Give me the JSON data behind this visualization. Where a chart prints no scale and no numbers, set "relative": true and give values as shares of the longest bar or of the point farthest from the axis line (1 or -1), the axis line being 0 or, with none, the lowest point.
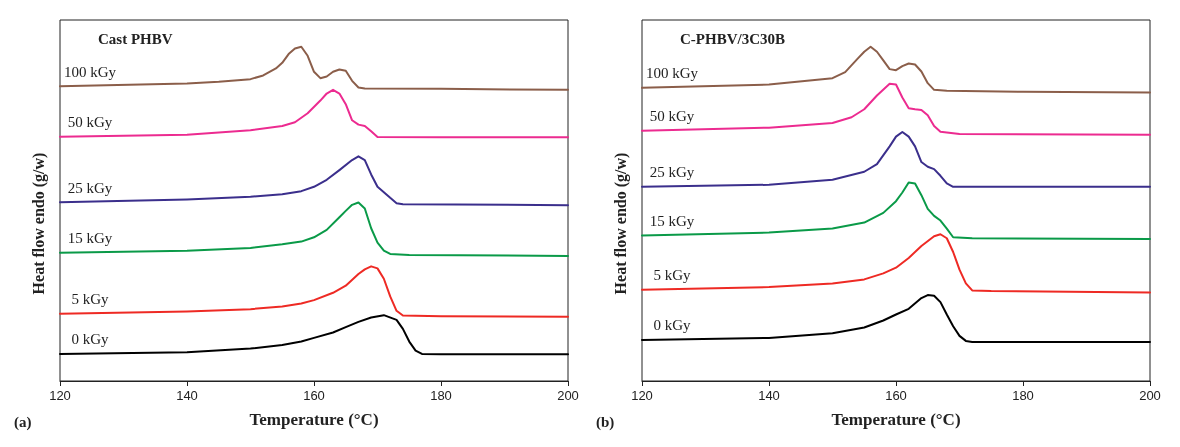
{
  "chart_data": [
    {
      "type": "line",
      "title": "Cast PHBV",
      "xlabel": "Temperature (°C)",
      "ylabel": "Heat flow endo (g/w)",
      "relative": true,
      "xlim": [
        120,
        200
      ],
      "xticks": [
        120,
        140,
        160,
        180,
        200
      ],
      "grid": false,
      "legend": false,
      "marker": "none",
      "line_style": "solid",
      "annotations": [
        "(a)"
      ],
      "series": [
        {
          "name": "0 kGy",
          "color": "#000000",
          "x": [
            120,
            140,
            150,
            155,
            158,
            160,
            163,
            165,
            167,
            169,
            171,
            173,
            174,
            175,
            176,
            177,
            180,
            200
          ],
          "values": [
            0.081,
            0.086,
            0.097,
            0.108,
            0.118,
            0.129,
            0.145,
            0.161,
            0.177,
            0.19,
            0.197,
            0.183,
            0.156,
            0.118,
            0.091,
            0.081,
            0.08,
            0.08
          ]
        },
        {
          "name": "5 kGy",
          "color": "#ee2a24",
          "x": [
            120,
            140,
            150,
            155,
            158,
            160,
            163,
            165,
            167,
            168,
            169,
            170,
            171,
            172,
            173,
            174,
            180,
            200
          ],
          "values": [
            0.201,
            0.208,
            0.215,
            0.223,
            0.232,
            0.242,
            0.264,
            0.285,
            0.32,
            0.334,
            0.343,
            0.337,
            0.306,
            0.253,
            0.21,
            0.196,
            0.194,
            0.192
          ]
        },
        {
          "name": "15 kGy",
          "color": "#0a9a48",
          "x": [
            120,
            140,
            150,
            155,
            158,
            160,
            162,
            164,
            165,
            166,
            167,
            168,
            169,
            170,
            171,
            172,
            175,
            200
          ],
          "values": [
            0.384,
            0.39,
            0.398,
            0.409,
            0.417,
            0.43,
            0.452,
            0.49,
            0.509,
            0.527,
            0.534,
            0.516,
            0.457,
            0.414,
            0.39,
            0.38,
            0.377,
            0.374
          ]
        },
        {
          "name": "25 kGy",
          "color": "#3b2f8c",
          "x": [
            120,
            140,
            150,
            155,
            158,
            160,
            162,
            164,
            166,
            167,
            168,
            169,
            170,
            171,
            172,
            173,
            174,
            200
          ],
          "values": [
            0.535,
            0.543,
            0.551,
            0.559,
            0.568,
            0.581,
            0.602,
            0.631,
            0.661,
            0.672,
            0.661,
            0.618,
            0.581,
            0.565,
            0.548,
            0.532,
            0.529,
            0.526
          ]
        },
        {
          "name": "50 kGy",
          "color": "#ec2b90",
          "x": [
            120,
            140,
            150,
            155,
            157,
            159,
            161,
            162,
            163,
            164,
            165,
            166,
            167,
            168,
            169,
            170,
            180,
            200
          ],
          "values": [
            0.731,
            0.737,
            0.75,
            0.763,
            0.774,
            0.801,
            0.839,
            0.86,
            0.871,
            0.86,
            0.828,
            0.78,
            0.767,
            0.763,
            0.747,
            0.73,
            0.729,
            0.729
          ]
        },
        {
          "name": "100 kGy",
          "color": "#8b5e4a",
          "x": [
            120,
            140,
            145,
            150,
            152,
            154,
            155,
            156,
            157,
            158,
            159,
            160,
            161,
            162,
            163,
            164,
            165,
            166,
            167,
            168,
            180,
            200
          ],
          "values": [
            0.882,
            0.89,
            0.895,
            0.903,
            0.914,
            0.935,
            0.952,
            0.978,
            0.995,
            1,
            0.973,
            0.925,
            0.906,
            0.911,
            0.925,
            0.932,
            0.928,
            0.898,
            0.878,
            0.875,
            0.874,
            0.871
          ]
        }
      ]
    },
    {
      "type": "line",
      "title": "C-PHBV/3C30B",
      "xlabel": "Temperature (°C)",
      "ylabel": "Heat flow endo (g/w)",
      "relative": true,
      "xlim": [
        120,
        200
      ],
      "xticks": [
        120,
        140,
        160,
        180,
        200
      ],
      "grid": false,
      "legend": false,
      "marker": "none",
      "line_style": "solid",
      "annotations": [
        "(b)"
      ],
      "series": [
        {
          "name": "0 kGy",
          "color": "#000000",
          "x": [
            120,
            140,
            150,
            155,
            158,
            160,
            162,
            164,
            165,
            166,
            167,
            168,
            169,
            170,
            171,
            172,
            200
          ],
          "values": [
            0.123,
            0.129,
            0.143,
            0.16,
            0.181,
            0.199,
            0.216,
            0.248,
            0.257,
            0.255,
            0.236,
            0.199,
            0.164,
            0.135,
            0.12,
            0.117,
            0.117
          ]
        },
        {
          "name": "5 kGy",
          "color": "#ee2a24",
          "x": [
            120,
            140,
            150,
            155,
            158,
            160,
            162,
            164,
            166,
            167,
            168,
            169,
            170,
            171,
            172,
            175,
            200
          ],
          "values": [
            0.273,
            0.281,
            0.292,
            0.304,
            0.322,
            0.339,
            0.368,
            0.404,
            0.433,
            0.439,
            0.427,
            0.386,
            0.333,
            0.292,
            0.271,
            0.269,
            0.265
          ]
        },
        {
          "name": "15 kGy",
          "color": "#0a9a48",
          "x": [
            120,
            140,
            150,
            155,
            158,
            160,
            161,
            162,
            163,
            164,
            165,
            166,
            167,
            168,
            169,
            172,
            200
          ],
          "values": [
            0.435,
            0.444,
            0.456,
            0.474,
            0.503,
            0.538,
            0.564,
            0.594,
            0.591,
            0.556,
            0.515,
            0.494,
            0.48,
            0.456,
            0.43,
            0.427,
            0.425
          ]
        },
        {
          "name": "25 kGy",
          "color": "#3b2f8c",
          "x": [
            120,
            140,
            150,
            155,
            157,
            159,
            160,
            161,
            162,
            163,
            164,
            165,
            166,
            167,
            168,
            169,
            200
          ],
          "values": [
            0.581,
            0.587,
            0.602,
            0.626,
            0.649,
            0.702,
            0.731,
            0.745,
            0.731,
            0.702,
            0.655,
            0.641,
            0.634,
            0.614,
            0.591,
            0.581,
            0.581
          ]
        },
        {
          "name": "50 kGy",
          "color": "#ec2b90",
          "x": [
            120,
            140,
            150,
            153,
            155,
            157,
            159,
            160,
            161,
            162,
            163,
            164,
            165,
            166,
            167,
            170,
            200
          ],
          "values": [
            0.749,
            0.758,
            0.772,
            0.789,
            0.813,
            0.854,
            0.889,
            0.887,
            0.848,
            0.816,
            0.813,
            0.811,
            0.795,
            0.763,
            0.746,
            0.739,
            0.737
          ]
        },
        {
          "name": "100 kGy",
          "color": "#8b5e4a",
          "x": [
            120,
            140,
            150,
            152,
            154,
            155,
            156,
            157,
            158,
            159,
            160,
            161,
            162,
            163,
            164,
            165,
            166,
            168,
            180,
            200
          ],
          "values": [
            0.877,
            0.887,
            0.906,
            0.924,
            0.965,
            0.985,
            1,
            0.985,
            0.959,
            0.933,
            0.93,
            0.942,
            0.95,
            0.947,
            0.926,
            0.891,
            0.871,
            0.868,
            0.865,
            0.863
          ]
        }
      ]
    }
  ]
}
